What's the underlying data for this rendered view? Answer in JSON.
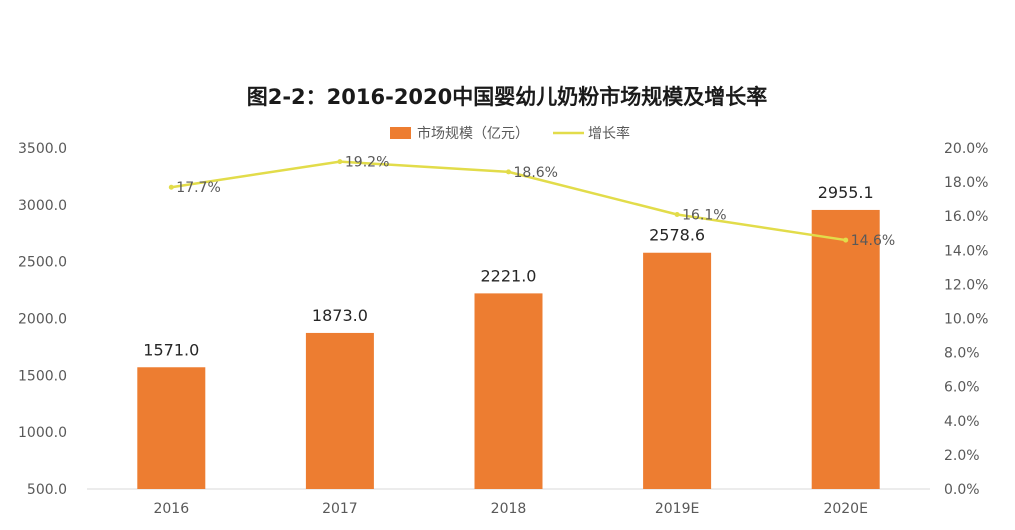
{
  "chart_data": {
    "type": "bar",
    "title": "图2-2：2016-2020中国婴幼儿奶粉市场规模及增长率",
    "categories": [
      "2016",
      "2017",
      "2018",
      "2019E",
      "2020E"
    ],
    "series": [
      {
        "name": "市场规模（亿元）",
        "type": "bar",
        "axis": "left",
        "color": "#ED7D31",
        "values": [
          1571.0,
          1873.0,
          2221.0,
          2578.6,
          2955.1
        ],
        "labels": [
          "1571.0",
          "1873.0",
          "2221.0",
          "2578.6",
          "2955.1"
        ]
      },
      {
        "name": "增长率",
        "type": "line",
        "axis": "right",
        "color": "#E2DC4A",
        "values": [
          17.7,
          19.2,
          18.6,
          16.1,
          14.6
        ],
        "labels": [
          "17.7%",
          "19.2%",
          "18.6%",
          "16.1%",
          "14.6%"
        ]
      }
    ],
    "y_left": {
      "min": 500,
      "max": 3500,
      "ticks": [
        "500.0",
        "1000.0",
        "1500.0",
        "2000.0",
        "2500.0",
        "3000.0",
        "3500.0"
      ]
    },
    "y_right": {
      "min": 0,
      "max": 20,
      "ticks": [
        "0.0%",
        "2.0%",
        "4.0%",
        "6.0%",
        "8.0%",
        "10.0%",
        "12.0%",
        "14.0%",
        "16.0%",
        "18.0%",
        "20.0%"
      ]
    },
    "grid": false,
    "legend": "top-center"
  }
}
